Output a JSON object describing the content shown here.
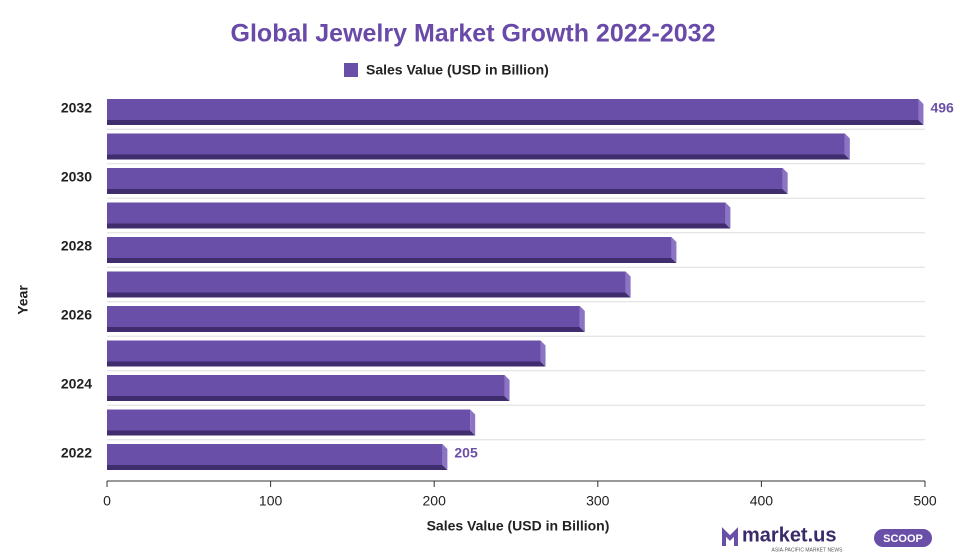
{
  "chart_data": {
    "type": "bar",
    "orientation": "horizontal",
    "title": "Global Jewelry Market Growth 2022-2032",
    "categories": [
      "2022",
      null,
      "2024",
      null,
      "2026",
      null,
      "2028",
      null,
      "2030",
      null,
      "2032"
    ],
    "series": [
      {
        "name": "Sales Value (USD in Billion)",
        "color": "#6a4fa8",
        "values": [
          205,
          222,
          243,
          265,
          289,
          317,
          345,
          378,
          413,
          451,
          496
        ],
        "value_labels": [
          "205",
          null,
          null,
          null,
          null,
          null,
          null,
          null,
          null,
          null,
          "496"
        ]
      }
    ],
    "xlim": [
      0,
      500
    ],
    "xticks": [
      0,
      100,
      200,
      300,
      400,
      500
    ],
    "x_label": "Sales Value (USD in Billion)",
    "y_label": "Year",
    "legend": "top"
  },
  "branding": {
    "name": "market.us",
    "badge": "SCOOP",
    "tagline": "ASIA-PACIFIC MARKET NEWS"
  }
}
